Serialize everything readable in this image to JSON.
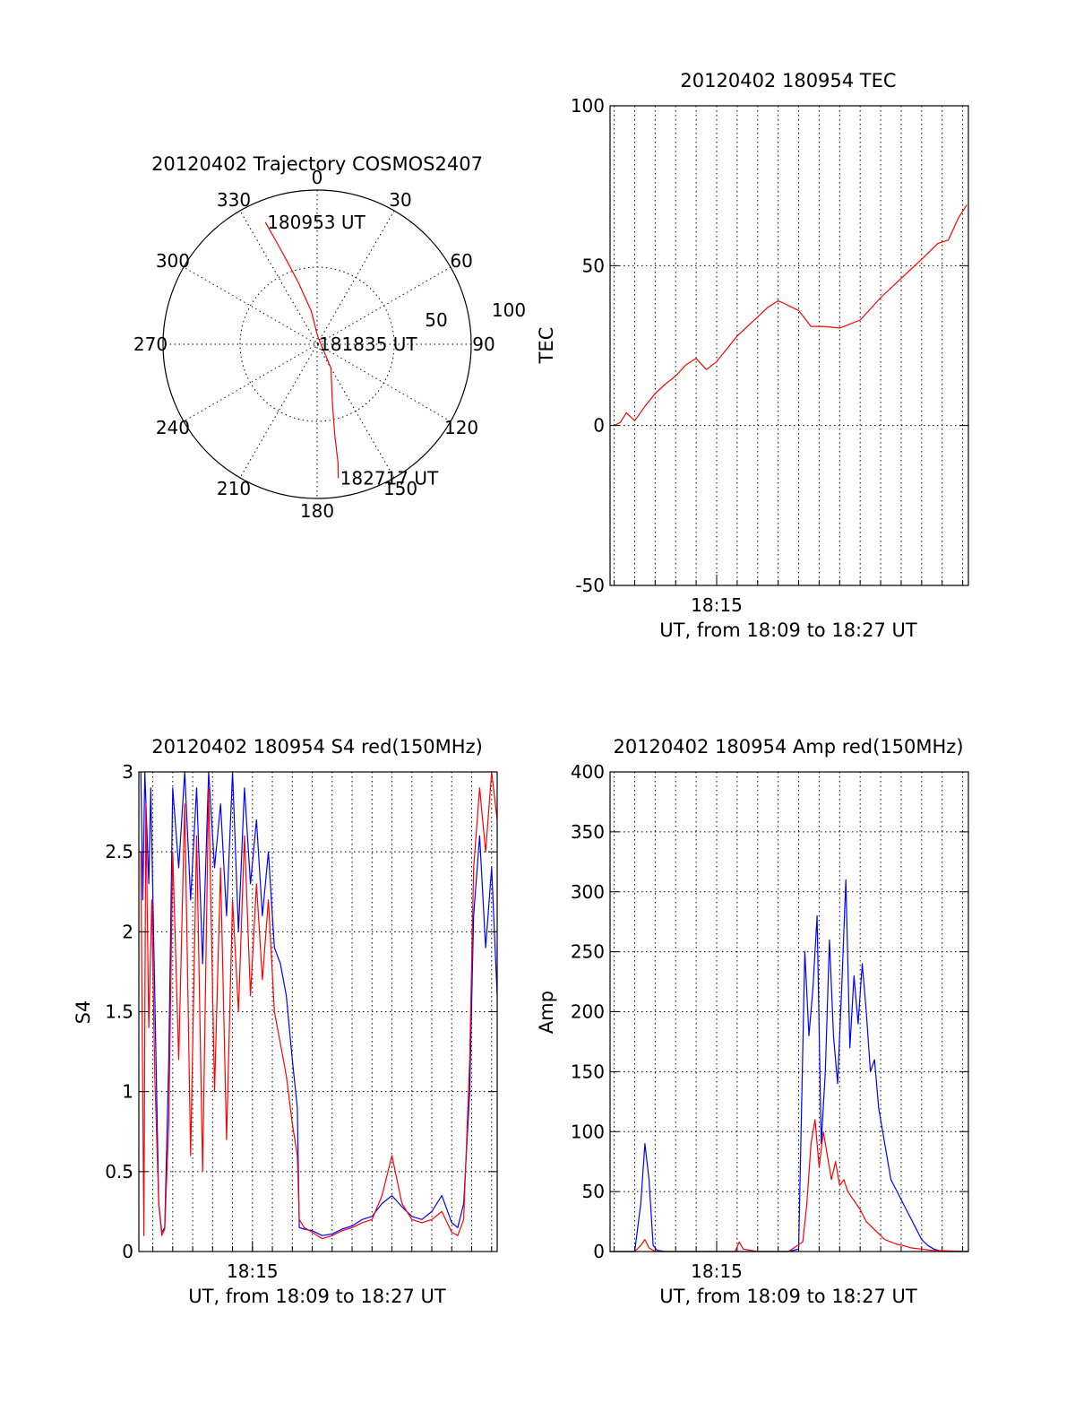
{
  "chart_data": [
    {
      "type": "polar",
      "title": "20120402 Trajectory COSMOS2407",
      "angle_labels": [
        "0",
        "30",
        "60",
        "90",
        "120",
        "150",
        "180",
        "210",
        "240",
        "270",
        "300",
        "330"
      ],
      "radius_labels": [
        "50",
        "100"
      ],
      "colors": {
        "trajectory": "#ff0000",
        "axes": "#000000"
      },
      "trajectory": {
        "azimuth_deg": [
          337,
          337.5,
          338.5,
          340,
          343,
          350,
          5,
          150,
          165,
          169,
          170,
          171
        ],
        "zenith": [
          86,
          80,
          70,
          58,
          42,
          22,
          5,
          18,
          38,
          60,
          78,
          88
        ]
      },
      "annotations": [
        {
          "text": "180953 UT",
          "azimuth_deg": 337,
          "zenith": 86
        },
        {
          "text": "181835 UT",
          "azimuth_deg": 180,
          "zenith": 0
        },
        {
          "text": "182717 UT",
          "azimuth_deg": 171,
          "zenith": 88
        }
      ]
    },
    {
      "type": "line",
      "title": "20120402 180954 TEC",
      "xlabel": "UT, from 18:09 to 18:27 UT",
      "ylabel": "TEC",
      "xlim": [
        9.8,
        27.28
      ],
      "ylim": [
        -50,
        100
      ],
      "yticks": [
        -50,
        0,
        50,
        100
      ],
      "xticks": [
        {
          "x": 15,
          "label": "18:15"
        }
      ],
      "series": [
        {
          "color": "#ff0000",
          "x": [
            10.0,
            10.3,
            10.6,
            11.0,
            11.5,
            12.0,
            12.5,
            13.0,
            13.5,
            14.0,
            14.5,
            15.0,
            15.5,
            16.0,
            16.5,
            17.0,
            17.5,
            18.0,
            18.2,
            18.5,
            19.0,
            19.6,
            20.2,
            21.0,
            22.0,
            23.0,
            24.0,
            25.0,
            25.8,
            26.3,
            26.8,
            27.2
          ],
          "y": [
            0,
            1,
            4,
            1.5,
            6,
            10,
            13,
            15.5,
            19,
            21,
            17.5,
            20,
            24,
            28,
            31,
            34,
            37,
            39,
            38.5,
            37.5,
            36,
            31,
            31,
            30.5,
            33,
            40,
            46,
            52,
            57,
            58,
            65,
            69
          ]
        }
      ]
    },
    {
      "type": "line",
      "title": "20120402 180954 S4 red(150MHz)",
      "xlabel": "UT, from 18:09 to 18:27 UT",
      "ylabel": "S4",
      "xlim": [
        9.3,
        27.28
      ],
      "ylim": [
        0,
        3
      ],
      "yticks": [
        "0",
        "0.5",
        "1",
        "1.5",
        "2",
        "2.5",
        "3"
      ],
      "xticks": [
        {
          "x": 15,
          "label": "18:15"
        }
      ],
      "series": [
        {
          "color": "#0000ff",
          "x": [
            9.4,
            9.5,
            9.6,
            9.8,
            9.9,
            10.1,
            10.3,
            10.45,
            10.6,
            10.8,
            11.0,
            11.3,
            11.6,
            11.9,
            12.2,
            12.5,
            12.8,
            13.1,
            13.4,
            13.7,
            14.0,
            14.3,
            14.6,
            14.9,
            15.2,
            15.5,
            15.8,
            16.1,
            16.4,
            16.7,
            17.0,
            17.25,
            17.35,
            17.6,
            18.0,
            18.5,
            19.0,
            19.5,
            20.0,
            20.5,
            21.0,
            21.5,
            22.0,
            22.5,
            23.0,
            23.5,
            24.0,
            24.5,
            25.0,
            25.3,
            25.6,
            25.9,
            26.1,
            26.4,
            26.7,
            27.0,
            27.28
          ],
          "y": [
            3,
            2.2,
            3,
            2.3,
            2.9,
            1.6,
            0.3,
            0.12,
            0.15,
            1.2,
            2.9,
            2.4,
            3,
            2.2,
            2.9,
            1.8,
            3,
            2.4,
            2.8,
            2.1,
            3,
            2.0,
            2.9,
            2.3,
            2.7,
            2.1,
            2.5,
            1.9,
            1.8,
            1.6,
            1.2,
            0.9,
            0.15,
            0.14,
            0.13,
            0.1,
            0.11,
            0.14,
            0.16,
            0.2,
            0.22,
            0.3,
            0.35,
            0.28,
            0.22,
            0.2,
            0.25,
            0.35,
            0.18,
            0.15,
            0.3,
            1.0,
            2.1,
            2.6,
            1.9,
            2.4,
            1.6
          ]
        },
        {
          "color": "#ff0000",
          "x": [
            9.4,
            9.55,
            9.65,
            9.8,
            9.95,
            10.1,
            10.3,
            10.45,
            10.6,
            10.8,
            11.0,
            11.3,
            11.6,
            11.9,
            12.2,
            12.5,
            12.8,
            13.1,
            13.4,
            13.7,
            14.0,
            14.3,
            14.6,
            14.9,
            15.2,
            15.5,
            15.8,
            16.1,
            16.4,
            16.7,
            17.0,
            17.25,
            17.35,
            17.6,
            18.0,
            18.5,
            19.0,
            19.5,
            20.0,
            20.5,
            21.0,
            21.5,
            22.0,
            22.5,
            23.0,
            23.5,
            24.0,
            24.5,
            25.0,
            25.3,
            25.6,
            25.9,
            26.1,
            26.4,
            26.7,
            27.0,
            27.28
          ],
          "y": [
            2.5,
            0.1,
            2.8,
            1.4,
            2.2,
            1.1,
            0.3,
            0.1,
            0.14,
            0.8,
            2.5,
            1.2,
            2.8,
            0.6,
            2.6,
            0.5,
            2.9,
            1.0,
            2.4,
            0.7,
            2.2,
            1.5,
            2.6,
            1.6,
            2.3,
            1.7,
            2.2,
            1.5,
            1.3,
            1.1,
            0.8,
            0.6,
            0.2,
            0.15,
            0.12,
            0.08,
            0.1,
            0.13,
            0.15,
            0.18,
            0.2,
            0.35,
            0.6,
            0.3,
            0.2,
            0.18,
            0.2,
            0.25,
            0.12,
            0.1,
            0.2,
            1.2,
            2.4,
            2.9,
            2.5,
            3,
            2.7
          ]
        }
      ]
    },
    {
      "type": "line",
      "title": "20120402 180954 Amp red(150MHz)",
      "xlabel": "UT, from 18:09 to 18:27 UT",
      "ylabel": "Amp",
      "xlim": [
        9.8,
        27.28
      ],
      "ylim": [
        0,
        400
      ],
      "yticks": [
        0,
        50,
        100,
        150,
        200,
        250,
        300,
        350,
        400
      ],
      "xticks": [
        {
          "x": 15,
          "label": "18:15"
        }
      ],
      "series": [
        {
          "color": "#0000ff",
          "x": [
            9.8,
            11.0,
            11.3,
            11.5,
            11.7,
            11.9,
            12.1,
            12.5,
            14.0,
            16.0,
            17.5,
            18.5,
            19.0,
            19.3,
            19.5,
            19.7,
            19.9,
            20.1,
            20.3,
            20.5,
            20.7,
            20.9,
            21.1,
            21.3,
            21.5,
            21.7,
            21.9,
            22.1,
            22.3,
            22.5,
            22.7,
            22.9,
            23.1,
            23.3,
            23.5,
            23.8,
            24.1,
            24.4,
            24.7,
            25.0,
            25.3,
            25.6,
            26.0,
            27.28
          ],
          "y": [
            0,
            0,
            40,
            90,
            60,
            5,
            1,
            0,
            0,
            0,
            0,
            0,
            2,
            250,
            180,
            220,
            280,
            90,
            150,
            260,
            180,
            140,
            220,
            310,
            170,
            230,
            190,
            240,
            200,
            150,
            160,
            120,
            100,
            80,
            60,
            50,
            40,
            30,
            20,
            10,
            5,
            2,
            0,
            0
          ]
        },
        {
          "color": "#ff0000",
          "x": [
            9.8,
            11.0,
            11.3,
            11.5,
            11.7,
            12.0,
            13.0,
            15.0,
            15.9,
            16.1,
            16.3,
            17.0,
            18.5,
            19.2,
            19.4,
            19.6,
            19.8,
            20.0,
            20.2,
            20.4,
            20.6,
            20.8,
            21.0,
            21.2,
            21.4,
            21.6,
            21.8,
            22.0,
            22.3,
            22.6,
            22.9,
            23.2,
            23.5,
            23.8,
            24.1,
            24.5,
            25.0,
            25.5,
            27.28
          ],
          "y": [
            0,
            0,
            5,
            10,
            3,
            0,
            0,
            0,
            0,
            8,
            2,
            0,
            0,
            8,
            40,
            90,
            110,
            70,
            100,
            80,
            60,
            75,
            55,
            60,
            50,
            45,
            40,
            35,
            25,
            20,
            15,
            10,
            8,
            6,
            5,
            3,
            2,
            1,
            0
          ]
        }
      ]
    }
  ]
}
